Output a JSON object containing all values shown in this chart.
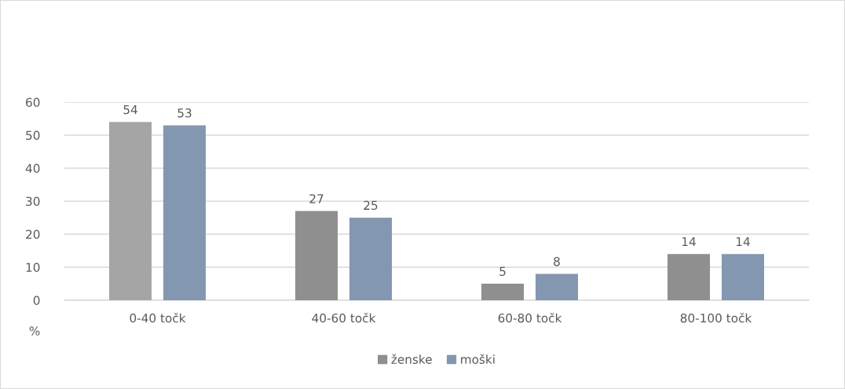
{
  "chart_data": {
    "type": "bar",
    "ylabel": "%",
    "categories": [
      "0-40 točk",
      "40-60 točk",
      "60-80 točk",
      "80-100 točk"
    ],
    "series": [
      {
        "name": "ženske",
        "color": "#8f8f8f",
        "colors": [
          "#a5a5a5",
          "#8f8f8f",
          "#8f8f8f",
          "#8f8f8f"
        ],
        "values": [
          54,
          27,
          5,
          14
        ]
      },
      {
        "name": "moški",
        "color": "#8497b0",
        "values": [
          53,
          25,
          8,
          14
        ]
      }
    ],
    "ylim": [
      0,
      60
    ],
    "yticks": [
      0,
      10,
      20,
      30,
      40,
      50,
      60
    ],
    "grid": "y",
    "legend": "bottom",
    "data_labels": true
  }
}
